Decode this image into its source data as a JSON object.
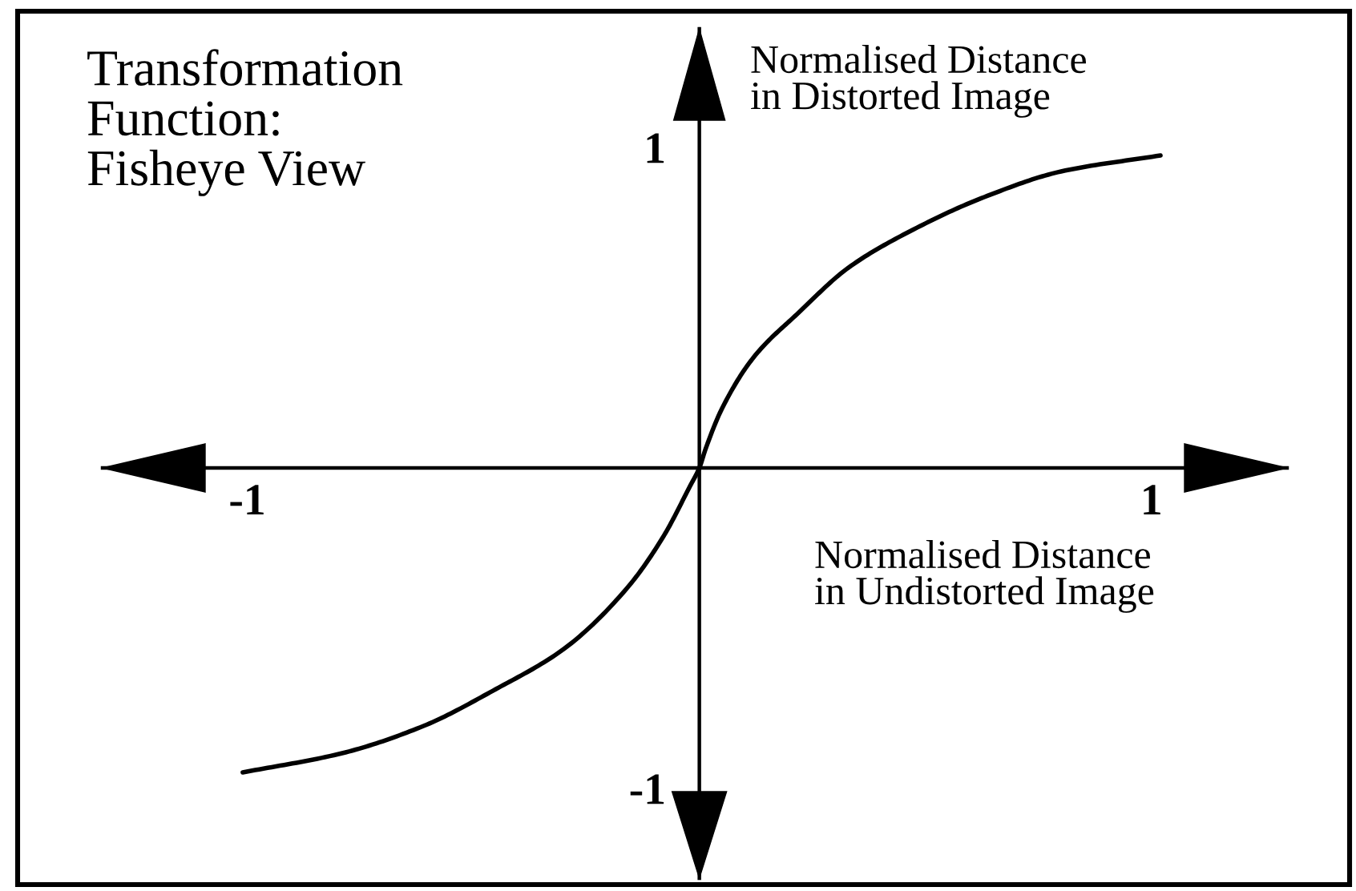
{
  "chart_data": {
    "type": "line",
    "title": "Transformation\nFunction:\nFisheye View",
    "xlabel": "Normalised Distance\nin Undistorted Image",
    "ylabel": "Normalised Distance\nin Distorted Image",
    "x": [
      -1.01,
      -0.79,
      -0.61,
      -0.45,
      -0.3,
      -0.16,
      -0.08,
      -0.02,
      0,
      0.014,
      0.05,
      0.12,
      0.22,
      0.33,
      0.475,
      0.63,
      0.8,
      1.02
    ],
    "series": [
      {
        "color": "#000000",
        "values": [
          -0.95,
          -0.89,
          -0.805,
          -0.69,
          -0.565,
          -0.375,
          -0.215,
          -0.055,
          0,
          0.06,
          0.185,
          0.345,
          0.485,
          0.625,
          0.745,
          0.845,
          0.925,
          0.975
        ]
      }
    ],
    "xlim": [
      -1.32,
      1.3
    ],
    "ylim": [
      -1.28,
      1.37
    ],
    "xticks": [
      -1,
      1
    ],
    "yticks": [
      -1,
      1
    ],
    "line_style": "solid"
  }
}
